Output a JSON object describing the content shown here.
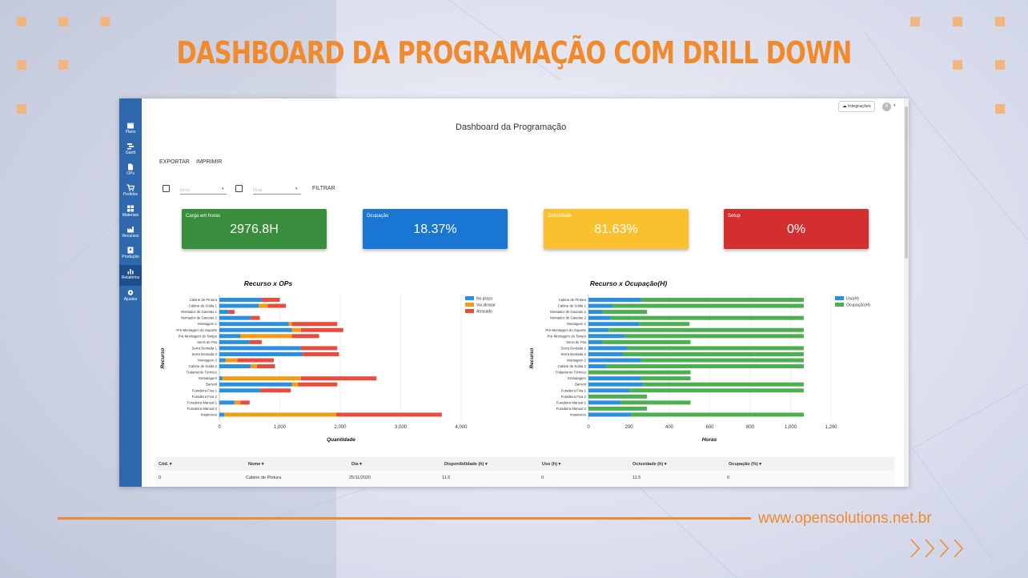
{
  "banner": {
    "title": "DASHBOARD DA PROGRAMAÇÃO COM DRILL DOWN",
    "url": "www.opensolutions.net.br"
  },
  "colors": {
    "accent": "#f08a2c",
    "sidebar": "#2f68ad",
    "green": "#388e3c",
    "blue": "#1976d2",
    "yellow": "#fbc02d",
    "red": "#d32f2f",
    "bar_blue": "#2b8fe0",
    "bar_orange": "#f39c12",
    "bar_red": "#e74c3c",
    "bar_green": "#4caf50"
  },
  "sidebar": {
    "items": [
      {
        "label": "Plano",
        "icon": "calendar-icon"
      },
      {
        "label": "Gantt",
        "icon": "gantt-icon"
      },
      {
        "label": "OPs",
        "icon": "document-icon"
      },
      {
        "label": "Pedidos",
        "icon": "cart-icon"
      },
      {
        "label": "Materiais",
        "icon": "grid-icon"
      },
      {
        "label": "Recursos",
        "icon": "factory-icon"
      },
      {
        "label": "Produção",
        "icon": "badge-icon"
      },
      {
        "label": "Relatórios",
        "icon": "bar-chart-icon"
      },
      {
        "label": "Ajustes",
        "icon": "gear-icon"
      }
    ]
  },
  "topbar": {
    "integrations": "Integrações",
    "avatar": "R"
  },
  "page": {
    "title": "Dashboard da Programação"
  },
  "actions": {
    "export": "EXPORTAR",
    "print": "IMPRIMIR"
  },
  "filters": {
    "start_placeholder": "Início",
    "end_placeholder": "Final",
    "filter_button": "FILTRAR"
  },
  "cards": [
    {
      "label": "Carga em horas",
      "value": "2976.8H"
    },
    {
      "label": "Ocupação",
      "value": "18.37%"
    },
    {
      "label": "Ociosidade",
      "value": "81.63%"
    },
    {
      "label": "Setup",
      "value": "0%"
    }
  ],
  "chart_data": [
    {
      "type": "bar",
      "orientation": "horizontal",
      "stacked": true,
      "title": "Recurso x OPs",
      "xlabel": "Quantidade",
      "ylabel": "Recurso",
      "xlim": [
        0,
        4000
      ],
      "xticks": [
        "0",
        "1,000",
        "2,000",
        "3,000",
        "4,000"
      ],
      "categories": [
        "Cabine de Pintura",
        "Cabine de Solda 1",
        "Montador de Gavetas 1",
        "Montador de Gavetas 2",
        "Montagem 1",
        "Pré-Montagem do Suporte",
        "Pré-Montagem do Tampo",
        "Serra de Fita",
        "Serra Dentada 1",
        "Serra Dentada 2",
        "Montagem 2",
        "Cabine de Solda 2",
        "Tratamento Térmico",
        "Embalagem",
        "Barreril",
        "Furadeira Fixa 1",
        "Furadeira Fixa 2",
        "Furadeira Manual 1",
        "Furadeira Manual 2",
        "Inspetores"
      ],
      "series": [
        {
          "name": "No prazo",
          "values": [
            700,
            650,
            150,
            520,
            1150,
            1200,
            350,
            500,
            1350,
            1380,
            100,
            520,
            0,
            50,
            1200,
            680,
            0,
            250,
            0,
            80
          ]
        },
        {
          "name": "Vai atrasar",
          "values": [
            0,
            150,
            0,
            0,
            50,
            150,
            850,
            0,
            0,
            0,
            200,
            100,
            0,
            1300,
            100,
            0,
            0,
            100,
            0,
            1850
          ]
        },
        {
          "name": "Atrasado",
          "values": [
            300,
            300,
            100,
            150,
            750,
            700,
            450,
            200,
            600,
            600,
            600,
            300,
            0,
            1250,
            650,
            500,
            0,
            150,
            0,
            1750
          ]
        }
      ],
      "legend": "top-right"
    },
    {
      "type": "bar",
      "orientation": "horizontal",
      "stacked": true,
      "title": "Recurso x Ocupação(H)",
      "xlabel": "Horas",
      "ylabel": "Recurso",
      "xlim": [
        0,
        1200
      ],
      "xticks": [
        "0",
        "200",
        "400",
        "600",
        "800",
        "1,000",
        "1,200"
      ],
      "categories": [
        "Cabine de Pintura",
        "Cabine de Solda 1",
        "Montador de Gavetas 1",
        "Montador de Gavetas 2",
        "Montagem 1",
        "Pré-Montagem do Suporte",
        "Pré-Montagem do Tampo",
        "Serra de Fita",
        "Serra Dentada 1",
        "Serra Dentada 2",
        "Montagem 2",
        "Cabine de Solda 2",
        "Tratamento Térmico",
        "Embalagem",
        "Barreril",
        "Furadeira Fixa 1",
        "Furadeira Fixa 2",
        "Furadeira Manual 1",
        "Furadeira Manual 2",
        "Inspetores"
      ],
      "series": [
        {
          "name": "Uso(H)",
          "values": [
            260,
            120,
            70,
            110,
            250,
            100,
            180,
            70,
            190,
            170,
            260,
            90,
            0,
            260,
            270,
            200,
            0,
            160,
            0,
            210
          ]
        },
        {
          "name": "Ocupação(H)",
          "values": [
            805,
            945,
            220,
            955,
            250,
            965,
            885,
            435,
            875,
            895,
            805,
            975,
            505,
            245,
            795,
            865,
            290,
            345,
            290,
            855
          ]
        }
      ],
      "legend": "top-right"
    }
  ],
  "table": {
    "headers": [
      "Cód.",
      "Nome",
      "Dia",
      "Disponibilidade (h)",
      "Uso (h)",
      "Ociosidade (h)",
      "Ocupação (%)"
    ],
    "rows": [
      [
        "0",
        "Cabine de Pintura",
        "25/11/2020",
        "11.5",
        "0",
        "11.5",
        "0"
      ]
    ]
  }
}
